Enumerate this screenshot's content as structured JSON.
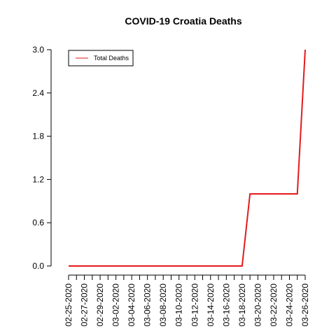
{
  "chart_data": {
    "type": "line",
    "title": "COVID-19 Croatia Deaths",
    "xlabel": "",
    "ylabel": "",
    "x": [
      "02-25-2020",
      "02-26-2020",
      "02-27-2020",
      "02-28-2020",
      "02-29-2020",
      "03-01-2020",
      "03-02-2020",
      "03-03-2020",
      "03-04-2020",
      "03-05-2020",
      "03-06-2020",
      "03-07-2020",
      "03-08-2020",
      "03-09-2020",
      "03-10-2020",
      "03-11-2020",
      "03-12-2020",
      "03-13-2020",
      "03-14-2020",
      "03-15-2020",
      "03-16-2020",
      "03-17-2020",
      "03-18-2020",
      "03-19-2020",
      "03-20-2020",
      "03-21-2020",
      "03-22-2020",
      "03-23-2020",
      "03-24-2020",
      "03-25-2020",
      "03-26-2020"
    ],
    "x_tick_labels": [
      "02-25-2020",
      "02-27-2020",
      "02-29-2020",
      "03-02-2020",
      "03-04-2020",
      "03-06-2020",
      "03-08-2020",
      "03-10-2020",
      "03-12-2020",
      "03-14-2020",
      "03-16-2020",
      "03-18-2020",
      "03-20-2020",
      "03-22-2020",
      "03-24-2020",
      "03-26-2020"
    ],
    "series": [
      {
        "name": "Total Deaths",
        "color": "#e41a1c",
        "values": [
          0,
          0,
          0,
          0,
          0,
          0,
          0,
          0,
          0,
          0,
          0,
          0,
          0,
          0,
          0,
          0,
          0,
          0,
          0,
          0,
          0,
          0,
          0,
          1,
          1,
          1,
          1,
          1,
          1,
          1,
          3
        ]
      }
    ],
    "ylim": [
      0,
      3
    ],
    "y_ticks": [
      "0.0",
      "0.6",
      "1.2",
      "1.8",
      "2.4",
      "3.0"
    ],
    "grid": false,
    "legend": {
      "position": "top-left"
    }
  }
}
